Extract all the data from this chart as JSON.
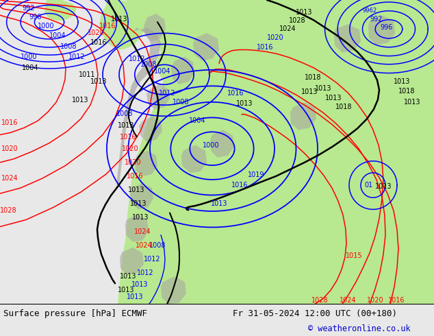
{
  "title_left": "Surface pressure [hPa] ECMWF",
  "title_right": "Fr 31-05-2024 12:00 UTC (00+180)",
  "copyright": "© weatheronline.co.uk",
  "ocean_color": "#e8e8e8",
  "land_color": "#b8e890",
  "terrain_color": "#a8a8a0",
  "figsize": [
    6.34,
    4.9
  ],
  "dpi": 100
}
